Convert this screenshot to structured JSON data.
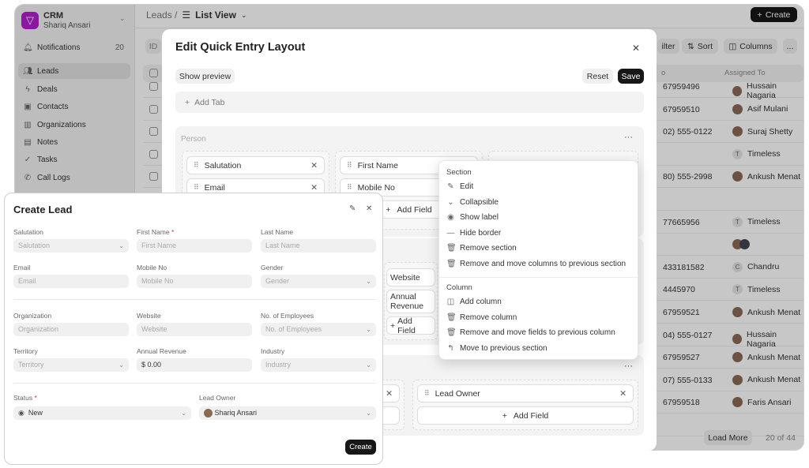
{
  "sidebar": {
    "app_name": "CRM",
    "user": "Shariq Ansari",
    "notifications": {
      "label": "Notifications",
      "count": "20"
    },
    "items": [
      {
        "label": "Leads",
        "icon": "users-icon"
      },
      {
        "label": "Deals",
        "icon": "bolt-icon"
      },
      {
        "label": "Contacts",
        "icon": "contact-icon"
      },
      {
        "label": "Organizations",
        "icon": "building-icon"
      },
      {
        "label": "Notes",
        "icon": "note-icon"
      },
      {
        "label": "Tasks",
        "icon": "check-circle-icon"
      },
      {
        "label": "Call Logs",
        "icon": "phone-icon"
      }
    ]
  },
  "header": {
    "breadcrumb": "Leads /",
    "view": "List View",
    "create": "Create"
  },
  "toolbar": {
    "id_chip": "ID",
    "filter": "ilter",
    "sort": "Sort",
    "columns": "Columns",
    "more": "..."
  },
  "table": {
    "col_phone": "o",
    "col_assigned": "Assigned To",
    "rows": [
      {
        "phone": "67959496",
        "assigned": "Hussain Nagaria",
        "avatar": "photo"
      },
      {
        "phone": "67959510",
        "assigned": "Asif Mulani",
        "avatar": "photo"
      },
      {
        "phone": "02) 555-0122",
        "assigned": "Suraj Shetty",
        "avatar": "photo"
      },
      {
        "phone": "",
        "assigned": "Timeless",
        "avatar": "T"
      },
      {
        "phone": "80) 555-2998",
        "assigned": "Ankush Menat",
        "avatar": "photo"
      },
      {
        "phone": "",
        "assigned": "",
        "avatar": ""
      },
      {
        "phone": "77665956",
        "assigned": "Timeless",
        "avatar": "T"
      },
      {
        "phone": "",
        "assigned": "",
        "avatar": "group"
      },
      {
        "phone": "433181582",
        "assigned": "Chandru",
        "avatar": "C"
      },
      {
        "phone": "4445970",
        "assigned": "Timeless",
        "avatar": "T"
      },
      {
        "phone": "67959521",
        "assigned": "Ankush Menat",
        "avatar": "photo"
      },
      {
        "phone": "04) 555-0127",
        "assigned": "Hussain Nagaria",
        "avatar": "photo"
      },
      {
        "phone": "67959527",
        "assigned": "Ankush Menat",
        "avatar": "photo"
      },
      {
        "phone": "07) 555-0133",
        "assigned": "Ankush Menat",
        "avatar": "photo"
      },
      {
        "phone": "67959518",
        "assigned": "Faris Ansari",
        "avatar": "photo"
      }
    ],
    "load_more": "Load More",
    "count": "20 of 44"
  },
  "layout_modal": {
    "title": "Edit Quick Entry Layout",
    "show_preview": "Show preview",
    "reset": "Reset",
    "save": "Save",
    "add_tab": "Add Tab",
    "section1": {
      "label": "Person",
      "fields_col1": [
        "Salutation",
        "Email"
      ],
      "fields_col2": [
        "First Name",
        "Mobile No"
      ],
      "add_field": "Add Field"
    },
    "section2": {
      "fields": [
        "Website",
        "Annual Revenue"
      ],
      "add_field": "Add Field"
    },
    "section3": {
      "field": "Lead Owner",
      "add_field": "Add Field"
    }
  },
  "section_menu": {
    "section_header": "Section",
    "section_items": [
      "Edit",
      "Collapsible",
      "Show label",
      "Hide border",
      "Remove section",
      "Remove and move columns to previous section"
    ],
    "column_header": "Column",
    "column_items": [
      "Add column",
      "Remove column",
      "Remove and move fields to previous column",
      "Move to previous section"
    ]
  },
  "create_lead": {
    "title": "Create Lead",
    "submit": "Create",
    "fields": [
      {
        "label": "Salutation",
        "placeholder": "Salutation",
        "select": true
      },
      {
        "label": "First Name",
        "required": "*",
        "placeholder": "First Name"
      },
      {
        "label": "Last Name",
        "placeholder": "Last Name"
      },
      {
        "label": "Email",
        "placeholder": "Email"
      },
      {
        "label": "Mobile No",
        "placeholder": "Mobile No"
      },
      {
        "label": "Gender",
        "placeholder": "Gender",
        "select": true
      },
      {
        "label": "Organization",
        "placeholder": "Organization"
      },
      {
        "label": "Website",
        "placeholder": "Website"
      },
      {
        "label": "No. of Employees",
        "placeholder": "No. of Employees",
        "select": true
      },
      {
        "label": "Territory",
        "placeholder": "Territory",
        "select": true
      },
      {
        "label": "Annual Revenue",
        "value": "$ 0.00"
      },
      {
        "label": "Industry",
        "placeholder": "Industry",
        "select": true
      }
    ],
    "status": {
      "label": "Status",
      "required": "*",
      "value": "New"
    },
    "lead_owner": {
      "label": "Lead Owner",
      "value": "Shariq Ansari"
    }
  },
  "colors": {
    "brand": "#b41fcf",
    "primary_button": "#171717",
    "required": "#e03131"
  }
}
